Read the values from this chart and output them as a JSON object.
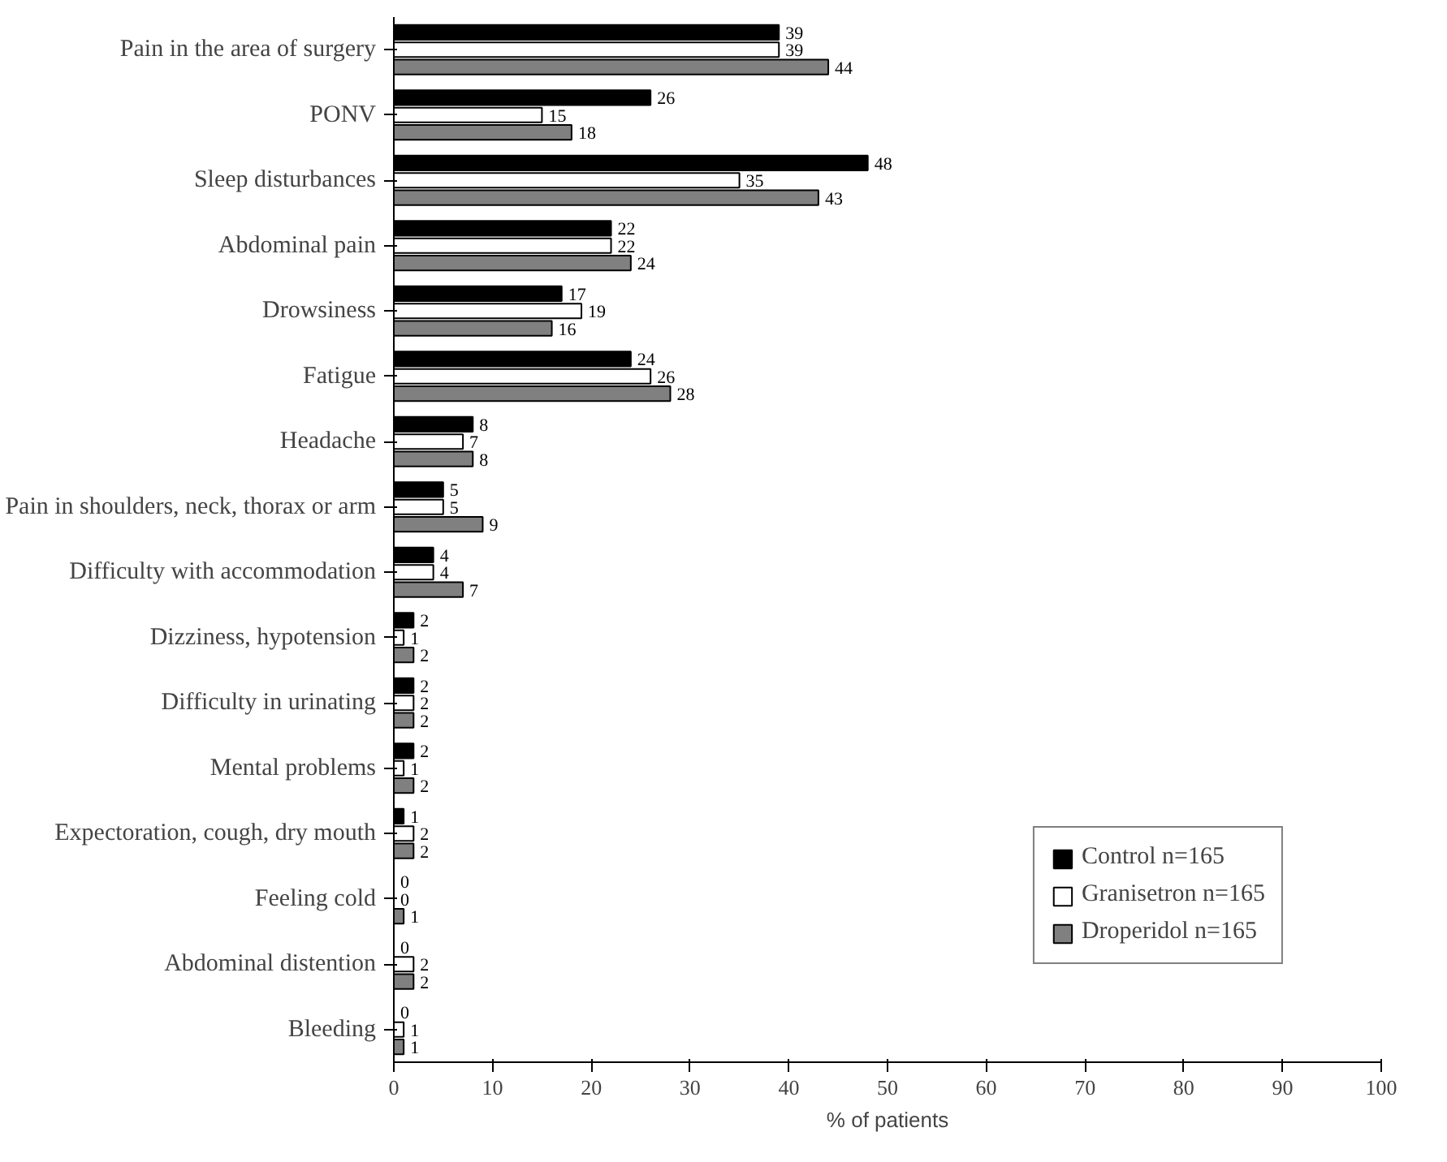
{
  "chart_data": {
    "type": "bar",
    "orientation": "horizontal",
    "xlabel": "% of patients",
    "categories": [
      "Pain in the area of surgery",
      "PONV",
      "Sleep disturbances",
      "Abdominal pain",
      "Drowsiness",
      "Fatigue",
      "Headache",
      "Pain in shoulders, neck, thorax or arm",
      "Difficulty with accommodation",
      "Dizziness, hypotension",
      "Difficulty in urinating",
      "Mental problems",
      "Expectoration, cough, dry mouth",
      "Feeling cold",
      "Abdominal distention",
      "Bleeding"
    ],
    "series": [
      {
        "name": "Control n=165",
        "color": "#000000",
        "values": [
          39,
          26,
          48,
          22,
          17,
          24,
          8,
          5,
          4,
          2,
          2,
          2,
          1,
          0,
          0,
          0
        ]
      },
      {
        "name": "Granisetron n=165",
        "color": "#ffffff",
        "values": [
          39,
          15,
          35,
          22,
          19,
          26,
          7,
          5,
          4,
          1,
          2,
          1,
          2,
          0,
          2,
          1
        ]
      },
      {
        "name": "Droperidol n=165",
        "color": "#808080",
        "values": [
          44,
          18,
          43,
          24,
          16,
          28,
          8,
          9,
          7,
          2,
          2,
          2,
          2,
          1,
          2,
          1
        ]
      }
    ],
    "xlim": [
      0,
      100
    ],
    "xticks": [
      0,
      10,
      20,
      30,
      40,
      50,
      60,
      70,
      80,
      90,
      100
    ],
    "data_labels": true,
    "grid": false,
    "legend": "bottom right"
  }
}
